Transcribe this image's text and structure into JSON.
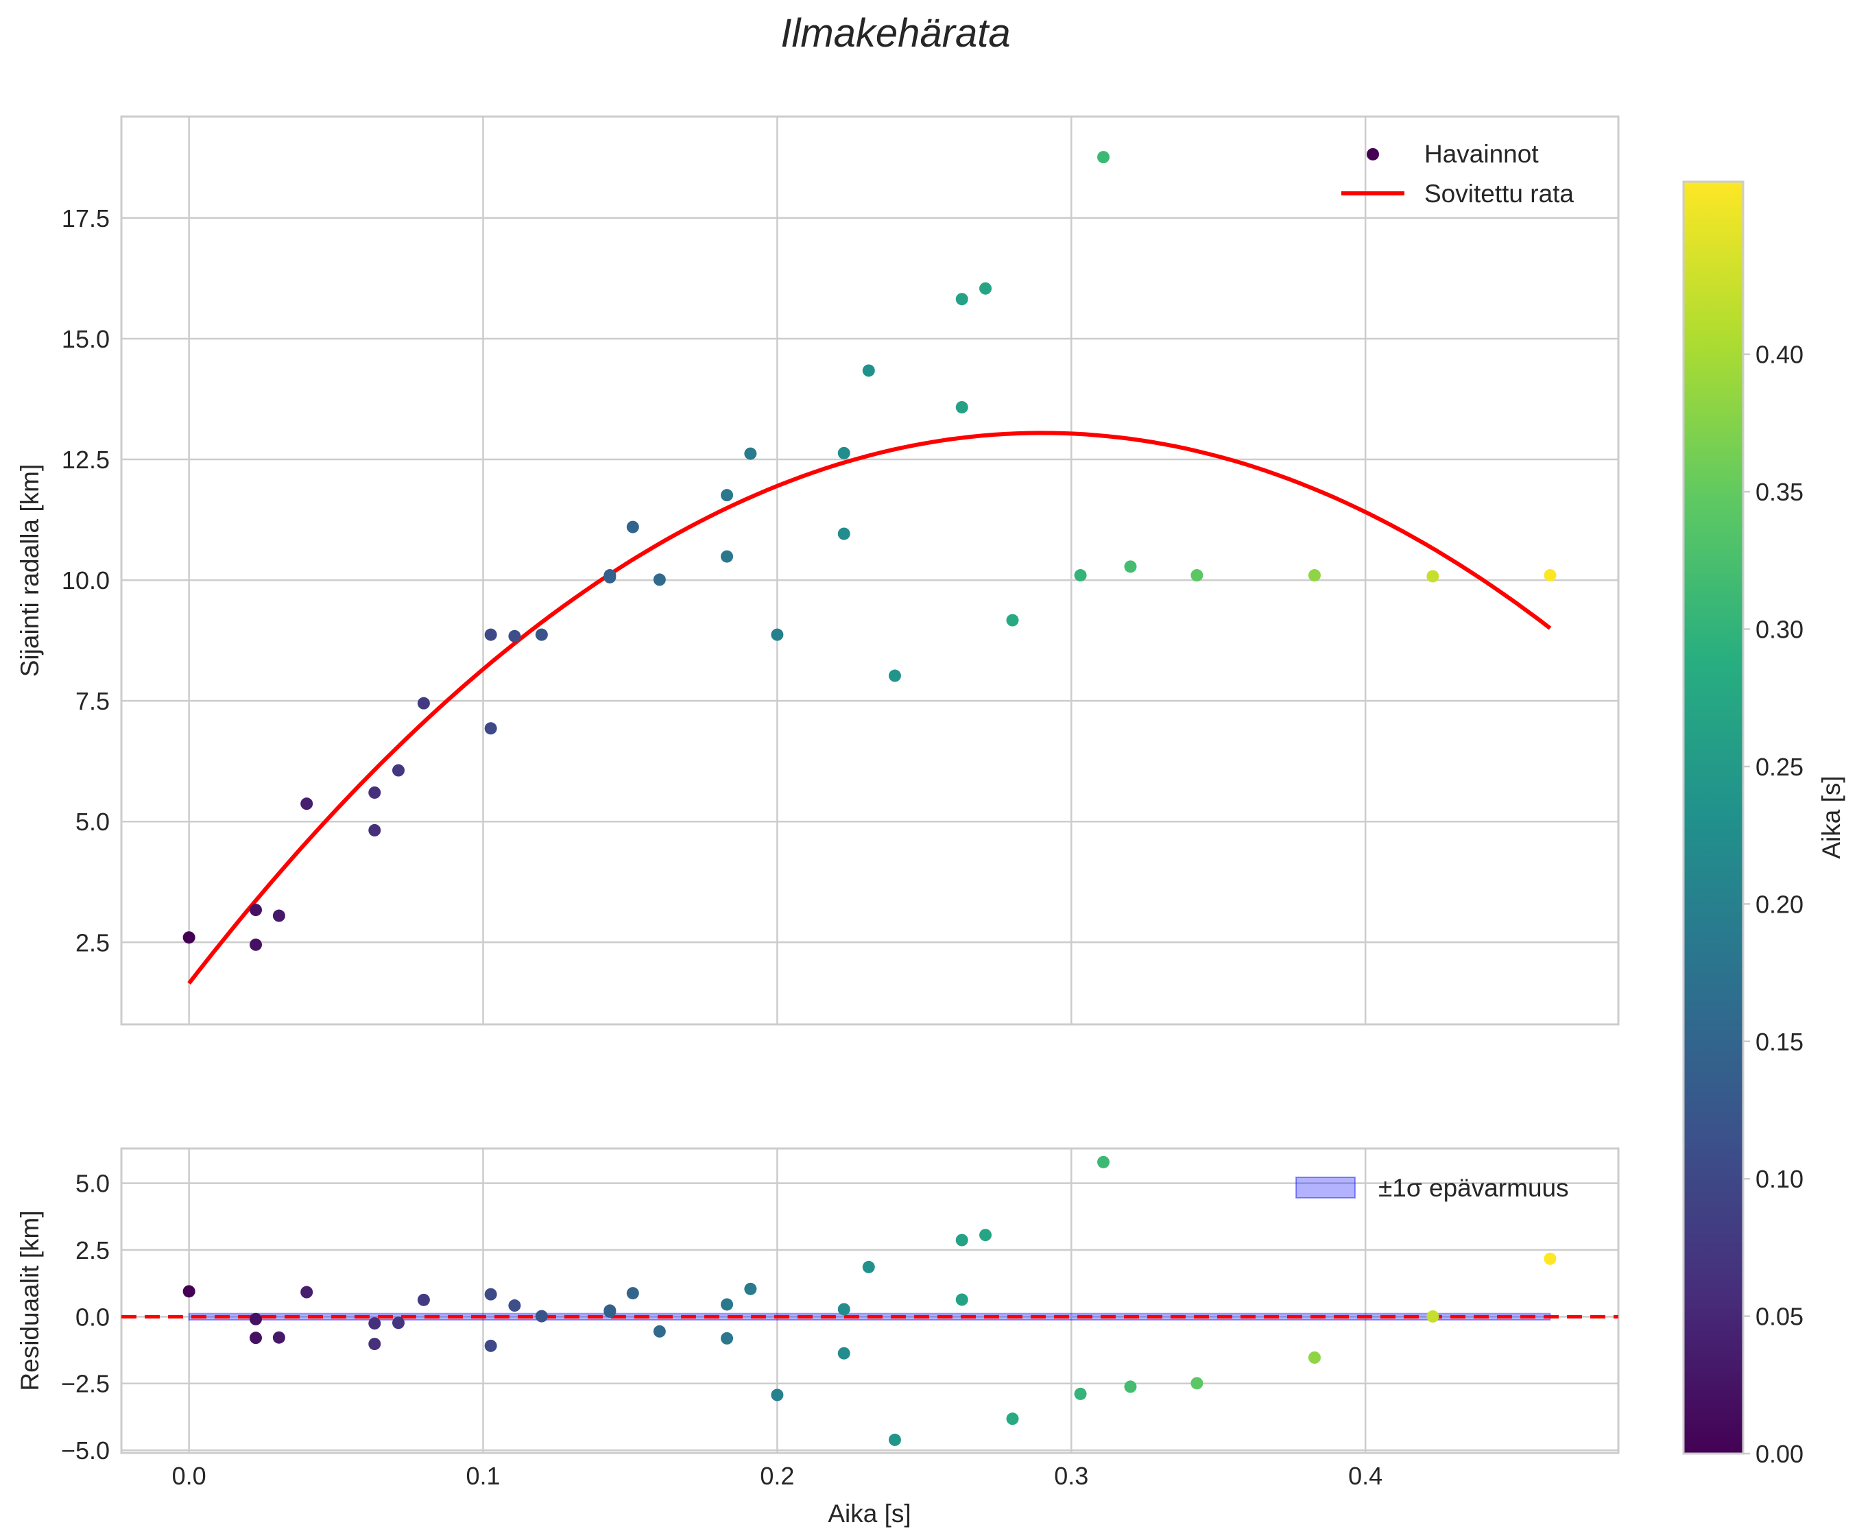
{
  "chart_data": {
    "type": "scatter",
    "title": "Ilmakehärata",
    "xlabel": "Aika [s]",
    "main_panel": {
      "ylabel": "Sijainti radalla [km]",
      "xlim": [
        -0.023,
        0.486
      ],
      "ylim": [
        0.8,
        19.6
      ],
      "xticks": [
        0.0,
        0.1,
        0.2,
        0.3,
        0.4
      ],
      "xtick_labels": [
        "0.0",
        "0.1",
        "0.2",
        "0.3",
        "0.4"
      ],
      "yticks": [
        2.5,
        5.0,
        7.5,
        10.0,
        12.5,
        15.0,
        17.5
      ],
      "ytick_labels": [
        "2.5",
        "5.0",
        "7.5",
        "10.0",
        "12.5",
        "15.0",
        "17.5"
      ],
      "series": [
        {
          "name": "Havainnot",
          "kind": "scatter",
          "x": [
            0.0,
            0.0227,
            0.0227,
            0.0306,
            0.04,
            0.0631,
            0.0631,
            0.0712,
            0.0798,
            0.1026,
            0.1026,
            0.1107,
            0.1199,
            0.1431,
            0.1431,
            0.1509,
            0.16,
            0.1829,
            0.1829,
            0.1909,
            0.2,
            0.2227,
            0.2227,
            0.2311,
            0.24,
            0.2628,
            0.2628,
            0.2708,
            0.28,
            0.3031,
            0.3109,
            0.3201,
            0.3427,
            0.3827,
            0.4229,
            0.4628
          ],
          "y": [
            2.6,
            3.17,
            2.45,
            3.05,
            5.37,
            5.6,
            4.82,
            6.06,
            7.45,
            8.87,
            6.93,
            8.84,
            8.87,
            10.1,
            10.06,
            11.1,
            10.01,
            11.76,
            10.49,
            12.62,
            8.87,
            12.63,
            10.96,
            14.34,
            8.02,
            15.82,
            13.58,
            16.04,
            9.17,
            10.1,
            18.76,
            10.28,
            10.1,
            10.1,
            10.08,
            10.1
          ],
          "colormap": "viridis",
          "color_by": "x"
        },
        {
          "name": "Sovitettu rata",
          "kind": "line",
          "color": "#ff0000",
          "model": "quadratic",
          "coefficients": [
            1.65,
            78.6,
            -135.5
          ],
          "x_range": [
            0.0,
            0.4628
          ]
        }
      ]
    },
    "residual_panel": {
      "ylabel": "Residuaalit [km]",
      "xlim": [
        -0.023,
        0.486
      ],
      "ylim": [
        -5.1,
        6.3
      ],
      "yticks": [
        -5.0,
        -2.5,
        0.0,
        2.5,
        5.0
      ],
      "ytick_labels": [
        "−5.0",
        "−2.5",
        "0.0",
        "2.5",
        "5.0"
      ],
      "residuals": [
        0.95,
        -0.09,
        -0.79,
        -0.78,
        0.92,
        -0.25,
        -1.02,
        -0.23,
        0.63,
        0.84,
        -1.09,
        0.42,
        0.02,
        0.23,
        0.19,
        0.88,
        -0.55,
        0.46,
        -0.81,
        1.04,
        -2.93,
        0.28,
        -1.37,
        1.86,
        -4.61,
        2.87,
        0.64,
        3.06,
        -3.82,
        -2.89,
        5.79,
        -2.62,
        -2.49,
        -1.53,
        0.01,
        2.17
      ],
      "zero_line_color": "#ff0000",
      "band": {
        "label": "±1σ epävarmuus",
        "color": "#0000ff",
        "sigma": 0.12
      }
    },
    "colorbar": {
      "label": "Aika [s]",
      "range": [
        0.0,
        0.4628
      ],
      "ticks": [
        0.0,
        0.05,
        0.1,
        0.15,
        0.2,
        0.25,
        0.3,
        0.35,
        0.4
      ],
      "tick_labels": [
        "0.00",
        "0.05",
        "0.10",
        "0.15",
        "0.20",
        "0.25",
        "0.30",
        "0.35",
        "0.40"
      ]
    }
  }
}
